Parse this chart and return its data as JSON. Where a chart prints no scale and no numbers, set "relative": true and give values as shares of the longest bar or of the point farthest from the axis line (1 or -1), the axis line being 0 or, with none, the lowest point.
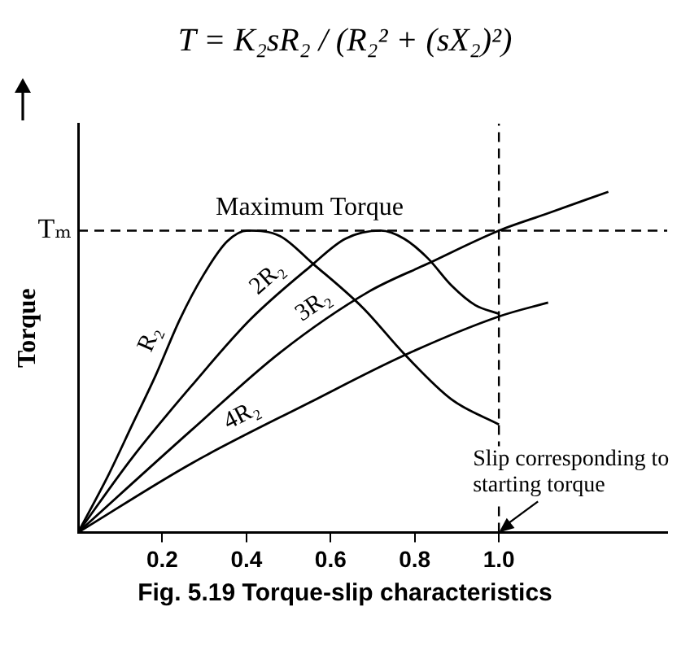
{
  "chart_data": {
    "type": "line",
    "title": "T = K₂sR₂ / (R₂² + (sX₂)²)",
    "ylabel": "Torque",
    "relative": true,
    "xlim": [
      0,
      1.4
    ],
    "xticks": [
      0.2,
      0.4,
      0.6,
      0.8,
      {
        "value": 1,
        "label": "1.0"
      }
    ],
    "grid": false,
    "legend": false,
    "marker": "none",
    "line_style": "solid",
    "ref_lines": [
      {
        "axis": "y",
        "value": 0.886,
        "label": "Tₘ",
        "line_style": "dashed",
        "color": "#000000"
      },
      {
        "axis": "x",
        "value": 1,
        "line_style": "dashed",
        "color": "#000000"
      }
    ],
    "annotations": [
      {
        "text": "Maximum Torque",
        "x": 0.55,
        "y": 0.886
      },
      {
        "text": "Slip corresponding to starting torque",
        "x": 1,
        "y": 0
      },
      "Fig. 5.19 Torque-slip characteristics"
    ],
    "series": [
      {
        "name": "R₂",
        "color": "#000000",
        "x": [
          0,
          0.073,
          0.129,
          0.185,
          0.242,
          0.298,
          0.354,
          0.403,
          0.48,
          0.558,
          0.677,
          0.775,
          0.888,
          1.0
        ],
        "values": [
          0,
          0.171,
          0.317,
          0.463,
          0.626,
          0.756,
          0.854,
          0.886,
          0.87,
          0.789,
          0.659,
          0.524,
          0.39,
          0.317
        ]
      },
      {
        "name": "2R₂",
        "color": "#000000",
        "x": [
          0,
          0.129,
          0.27,
          0.41,
          0.551,
          0.635,
          0.719,
          0.775,
          0.831,
          0.888,
          0.944,
          1.0
        ],
        "values": [
          0,
          0.22,
          0.431,
          0.626,
          0.78,
          0.862,
          0.886,
          0.862,
          0.805,
          0.724,
          0.667,
          0.642
        ]
      },
      {
        "name": "3R₂",
        "color": "#000000",
        "x": [
          0,
          0.27,
          0.48,
          0.691,
          0.831,
          1.0,
          1.112,
          1.26
        ],
        "values": [
          0,
          0.301,
          0.528,
          0.707,
          0.789,
          0.886,
          0.935,
          1.0
        ]
      },
      {
        "name": "4R₂",
        "color": "#000000",
        "x": [
          0,
          0.27,
          0.551,
          0.775,
          1.0,
          1.117
        ],
        "values": [
          0,
          0.203,
          0.382,
          0.52,
          0.634,
          0.675
        ]
      }
    ]
  }
}
